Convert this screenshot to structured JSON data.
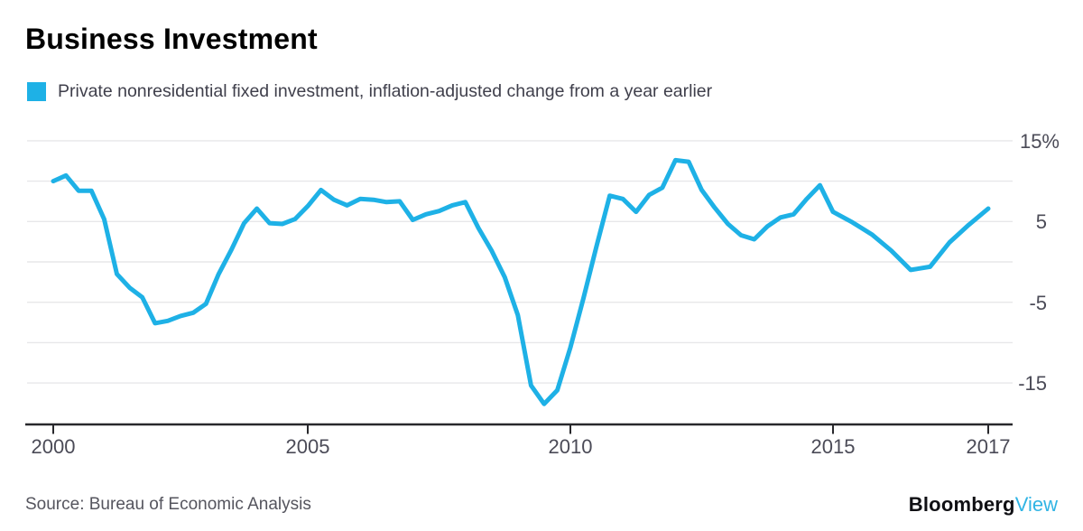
{
  "header": {
    "title": "Business Investment"
  },
  "chart_data": {
    "type": "line",
    "title": "Business Investment",
    "legend_position": "top-left",
    "grid": "horizontal",
    "unit": "%",
    "ylabel": "",
    "xlabel": "",
    "ylim": [
      -20,
      16.5
    ],
    "y_grid_values": [
      15,
      10,
      5,
      0,
      -5,
      -10,
      -15
    ],
    "y_ticks": [
      {
        "label": "15%",
        "value": 15
      },
      {
        "label": "5",
        "value": 5
      },
      {
        "label": "-5",
        "value": -5
      },
      {
        "label": "-15",
        "value": -15
      }
    ],
    "x_ticks": [
      {
        "label": "2000",
        "value": 2000
      },
      {
        "label": "2005",
        "value": 2005
      },
      {
        "label": "2010",
        "value": 2010
      },
      {
        "label": "2015",
        "value": 2015
      },
      {
        "label": "2017",
        "value": 2017
      }
    ],
    "x_start": 2000,
    "x_step": 0.25,
    "x_end": 2017,
    "points": 69,
    "series": [
      {
        "name": "Private nonresidential fixed investment, inflation-adjusted change from a year earlier",
        "color": "#1eb1e6",
        "values": [
          10.0,
          10.7,
          8.8,
          8.8,
          5.3,
          -1.5,
          -3.2,
          -4.4,
          -7.6,
          -7.3,
          -6.7,
          -6.3,
          -5.2,
          -1.5,
          1.5,
          4.8,
          6.6,
          4.8,
          4.7,
          5.3,
          6.9,
          8.9,
          7.7,
          7.0,
          7.8,
          7.7,
          7.4,
          7.5,
          5.2,
          5.9,
          6.3,
          7.0,
          7.4,
          4.2,
          1.4,
          -1.9,
          -6.6,
          -15.3,
          -17.6,
          -15.9,
          -10.6,
          -4.5,
          2.0,
          8.2,
          7.8,
          6.2,
          8.3,
          9.2,
          12.6,
          12.4,
          8.9,
          6.7,
          4.7,
          3.3,
          2.8,
          4.4,
          5.5,
          5.9,
          7.8,
          9.5,
          6.2,
          4.9,
          3.4,
          1.4,
          -1.0,
          -0.6,
          2.4,
          4.6,
          6.6
        ]
      }
    ]
  },
  "footer": {
    "source": "Source: Bureau of Economic Analysis",
    "brand_black": "Bloomberg",
    "brand_accent": "View"
  }
}
